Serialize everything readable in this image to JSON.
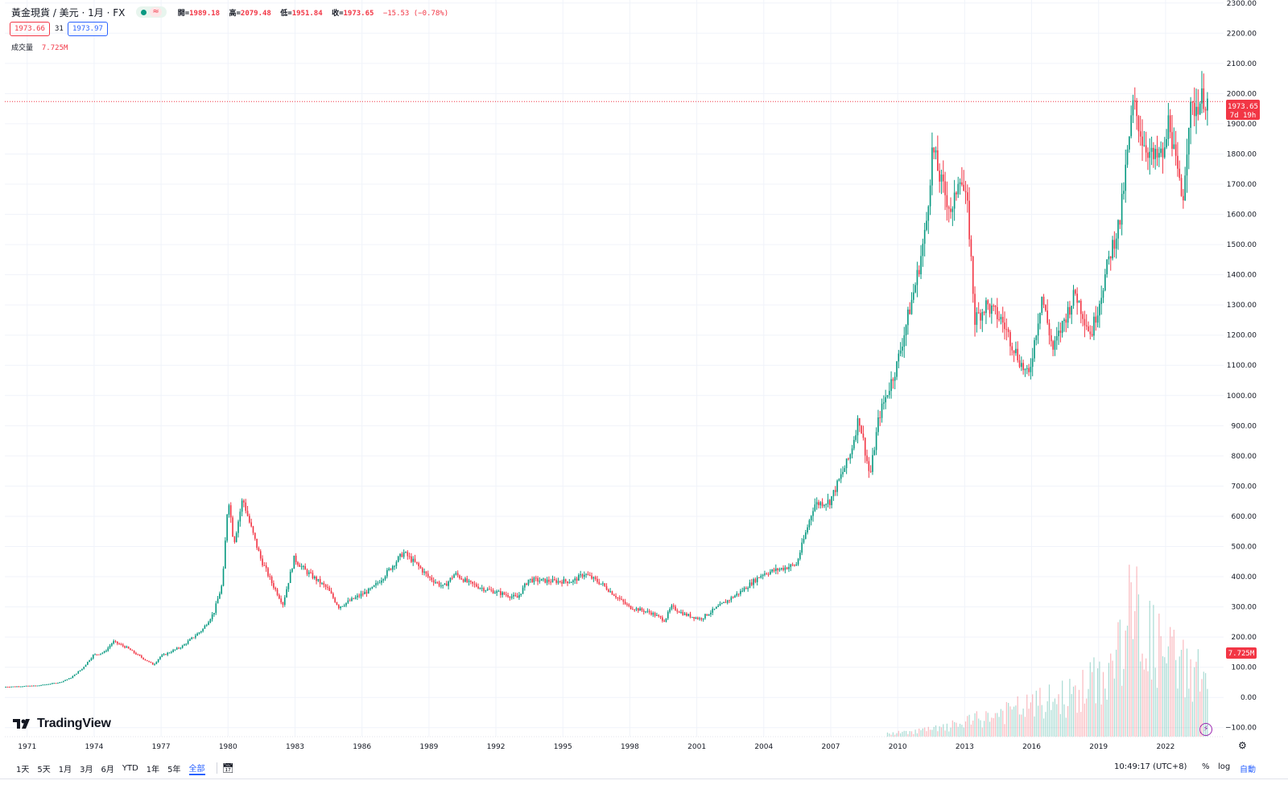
{
  "header": {
    "symbol_title": "黃金現貨 / 美元 · 1月 · FX",
    "wave_icon": "≈",
    "ohlc": {
      "open_label": "開=",
      "open": "1989.18",
      "high_label": "高=",
      "high": "2079.48",
      "low_label": "低=",
      "low": "1951.84",
      "close_label": "收=",
      "close": "1973.65",
      "change": "−15.53 (−0.78%)"
    },
    "sell_price": "1973.66",
    "spread": "31",
    "buy_price": "1973.97",
    "volume_label": "成交量",
    "volume_value": "7.725M"
  },
  "price_badge": {
    "price": "1973.65",
    "countdown": "7d 19h"
  },
  "volume_badge": "7.725M",
  "logo": "TradingView",
  "range_buttons": [
    "1天",
    "5天",
    "1月",
    "3月",
    "6月",
    "YTD",
    "1年",
    "5年",
    "全部"
  ],
  "active_range": "全部",
  "clock": "10:49:17 (UTC+8)",
  "controls": {
    "percent": "%",
    "log": "log",
    "auto": "自動"
  },
  "colors": {
    "up": "#089981",
    "down": "#f23645",
    "grid": "#f0f3fa",
    "accent": "#2962ff"
  },
  "chart_data": {
    "type": "candlestick",
    "title": "黃金現貨 / 美元 · 1月 · FX",
    "x_tick_labels": [
      "1971",
      "1974",
      "1977",
      "1980",
      "1983",
      "1986",
      "1989",
      "1992",
      "1995",
      "1998",
      "2001",
      "2004",
      "2007",
      "2010",
      "2013",
      "2016",
      "2019",
      "2022"
    ],
    "y_tick_labels": [
      "2300.00",
      "2200.00",
      "2100.00",
      "2000.00",
      "1900.00",
      "1800.00",
      "1700.00",
      "1600.00",
      "1500.00",
      "1400.00",
      "1300.00",
      "1200.00",
      "1100.00",
      "1000.00",
      "900.00",
      "800.00",
      "700.00",
      "600.00",
      "500.00",
      "400.00",
      "300.00",
      "200.00",
      "100.00",
      "0.00",
      "−100.00"
    ],
    "ylim": [
      -130,
      2310
    ],
    "xlim": [
      1970.0,
      2024.6
    ],
    "last_price": 1973.65,
    "price_anchors": [
      [
        1970.0,
        35
      ],
      [
        1971.5,
        39
      ],
      [
        1972.5,
        50
      ],
      [
        1973.0,
        65
      ],
      [
        1973.5,
        95
      ],
      [
        1974.0,
        140
      ],
      [
        1974.5,
        150
      ],
      [
        1974.9,
        185
      ],
      [
        1975.5,
        165
      ],
      [
        1976.0,
        140
      ],
      [
        1976.7,
        108
      ],
      [
        1977.0,
        135
      ],
      [
        1978.0,
        170
      ],
      [
        1978.9,
        225
      ],
      [
        1979.4,
        280
      ],
      [
        1979.8,
        380
      ],
      [
        1980.05,
        670
      ],
      [
        1980.3,
        510
      ],
      [
        1980.7,
        660
      ],
      [
        1981.0,
        580
      ],
      [
        1981.5,
        460
      ],
      [
        1982.0,
        380
      ],
      [
        1982.5,
        310
      ],
      [
        1983.0,
        460
      ],
      [
        1983.5,
        420
      ],
      [
        1984.0,
        390
      ],
      [
        1984.5,
        360
      ],
      [
        1985.0,
        300
      ],
      [
        1985.5,
        320
      ],
      [
        1986.5,
        360
      ],
      [
        1987.0,
        400
      ],
      [
        1987.9,
        480
      ],
      [
        1988.5,
        440
      ],
      [
        1989.0,
        400
      ],
      [
        1989.7,
        365
      ],
      [
        1990.2,
        410
      ],
      [
        1990.8,
        380
      ],
      [
        1991.5,
        360
      ],
      [
        1992.5,
        340
      ],
      [
        1993.0,
        330
      ],
      [
        1993.5,
        390
      ],
      [
        1994.5,
        385
      ],
      [
        1995.5,
        385
      ],
      [
        1996.0,
        410
      ],
      [
        1996.8,
        375
      ],
      [
        1997.5,
        330
      ],
      [
        1998.0,
        300
      ],
      [
        1999.0,
        280
      ],
      [
        1999.6,
        255
      ],
      [
        1999.9,
        300
      ],
      [
        2000.5,
        275
      ],
      [
        2001.2,
        260
      ],
      [
        2002.0,
        300
      ],
      [
        2003.0,
        350
      ],
      [
        2004.0,
        410
      ],
      [
        2005.0,
        430
      ],
      [
        2005.5,
        440
      ],
      [
        2006.3,
        640
      ],
      [
        2007.0,
        650
      ],
      [
        2007.9,
        800
      ],
      [
        2008.3,
        930
      ],
      [
        2008.8,
        730
      ],
      [
        2009.2,
        930
      ],
      [
        2010.0,
        1100
      ],
      [
        2010.9,
        1390
      ],
      [
        2011.3,
        1550
      ],
      [
        2011.6,
        1820
      ],
      [
        2012.0,
        1700
      ],
      [
        2012.5,
        1600
      ],
      [
        2012.8,
        1750
      ],
      [
        2013.2,
        1600
      ],
      [
        2013.5,
        1250
      ],
      [
        2014.0,
        1300
      ],
      [
        2014.7,
        1250
      ],
      [
        2015.0,
        1200
      ],
      [
        2015.6,
        1100
      ],
      [
        2015.9,
        1060
      ],
      [
        2016.5,
        1330
      ],
      [
        2017.0,
        1150
      ],
      [
        2017.5,
        1250
      ],
      [
        2018.0,
        1340
      ],
      [
        2018.7,
        1200
      ],
      [
        2019.0,
        1290
      ],
      [
        2019.6,
        1480
      ],
      [
        2020.0,
        1580
      ],
      [
        2020.6,
        1970
      ],
      [
        2021.0,
        1850
      ],
      [
        2021.5,
        1780
      ],
      [
        2022.0,
        1800
      ],
      [
        2022.2,
        1930
      ],
      [
        2022.5,
        1760
      ],
      [
        2022.8,
        1640
      ],
      [
        2023.1,
        1930
      ],
      [
        2023.4,
        1960
      ],
      [
        2023.75,
        1990
      ],
      [
        2023.85,
        1973.65
      ]
    ],
    "volume_range": [
      2009.5,
      2023.9
    ],
    "volume_anchors": [
      [
        2009.5,
        20
      ],
      [
        2012.0,
        60
      ],
      [
        2015.0,
        180
      ],
      [
        2018.0,
        300
      ],
      [
        2019.5,
        460
      ],
      [
        2020.5,
        900
      ],
      [
        2021.5,
        620
      ],
      [
        2022.5,
        520
      ],
      [
        2023.9,
        420
      ]
    ]
  }
}
